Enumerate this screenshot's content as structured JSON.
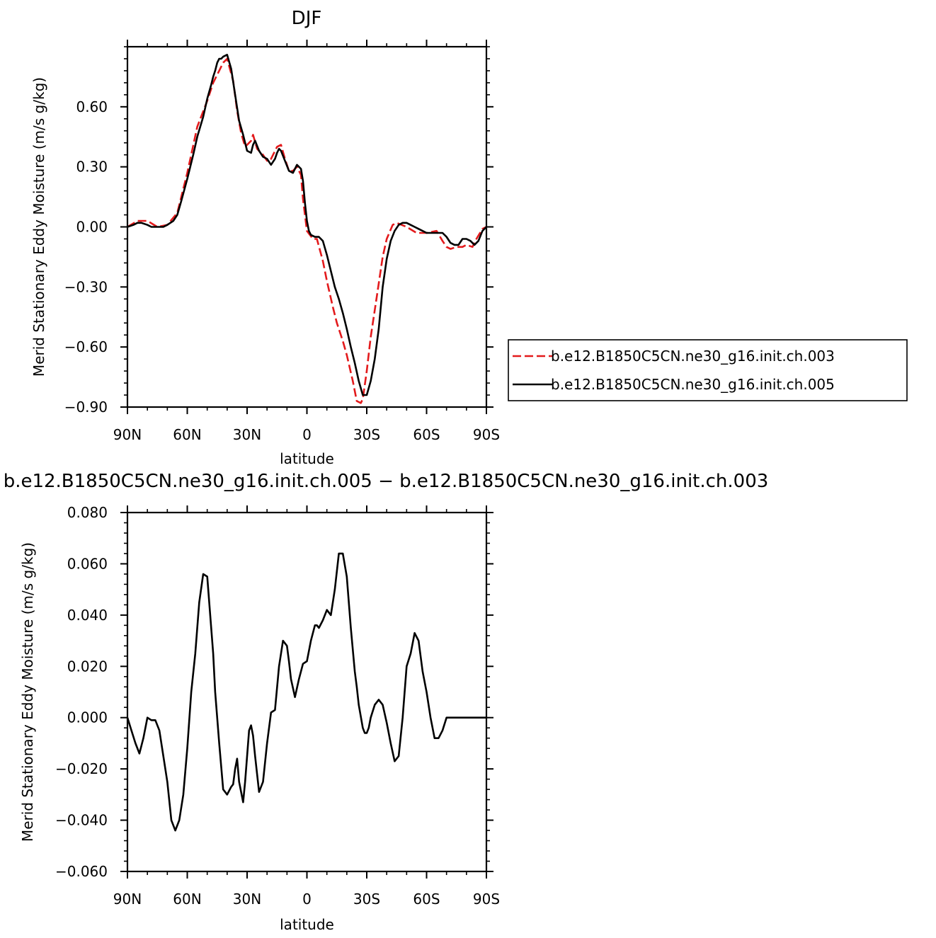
{
  "chart_data": [
    {
      "type": "line",
      "title": "DJF",
      "xlabel": "latitude",
      "ylabel": "Merid Stationary Eddy Moisture (m/s g/kg)",
      "xlim": [
        90,
        -90
      ],
      "ylim": [
        -0.9,
        0.9
      ],
      "x_ticks": [
        90,
        60,
        30,
        0,
        -30,
        -60,
        -90
      ],
      "x_tick_labels": [
        "90N",
        "60N",
        "30N",
        "0",
        "30S",
        "60S",
        "90S"
      ],
      "y_ticks": [
        -0.9,
        -0.6,
        -0.3,
        0.0,
        0.3,
        0.6
      ],
      "y_tick_labels": [
        "−0.90",
        "−0.60",
        "−0.30",
        "0.00",
        "0.30",
        "0.60"
      ],
      "legend_position": "right",
      "series": [
        {
          "name": "b.e12.B1850C5CN.ne30_g16.init.ch.003",
          "color": "#e31a1c",
          "dash": "dashed",
          "x": [
            90,
            85,
            80,
            75,
            70,
            65,
            60,
            55,
            50,
            47,
            44,
            42,
            40,
            37,
            35,
            33,
            31,
            28,
            27,
            25,
            22,
            20,
            18,
            15,
            13,
            11,
            9,
            7,
            5,
            3,
            2,
            0,
            -3,
            -5,
            -8,
            -10,
            -13,
            -15,
            -18,
            -20,
            -23,
            -25,
            -27,
            -28,
            -30,
            -32,
            -35,
            -38,
            -40,
            -43,
            -45,
            -50,
            -55,
            -60,
            -65,
            -68,
            -70,
            -72,
            -75,
            -78,
            -80,
            -83,
            -85,
            -88,
            -90
          ],
          "y": [
            0.0,
            0.03,
            0.03,
            0.0,
            0.01,
            0.07,
            0.27,
            0.5,
            0.63,
            0.72,
            0.78,
            0.82,
            0.84,
            0.73,
            0.58,
            0.47,
            0.4,
            0.43,
            0.46,
            0.39,
            0.36,
            0.33,
            0.34,
            0.4,
            0.41,
            0.34,
            0.28,
            0.28,
            0.3,
            0.26,
            0.14,
            -0.02,
            -0.06,
            -0.06,
            -0.17,
            -0.27,
            -0.4,
            -0.48,
            -0.57,
            -0.64,
            -0.77,
            -0.87,
            -0.88,
            -0.86,
            -0.72,
            -0.55,
            -0.35,
            -0.15,
            -0.06,
            0.01,
            0.02,
            0.0,
            -0.03,
            -0.03,
            -0.02,
            -0.07,
            -0.1,
            -0.11,
            -0.1,
            -0.1,
            -0.09,
            -0.1,
            -0.06,
            -0.01,
            0.0
          ]
        },
        {
          "name": "b.e12.B1850C5CN.ne30_g16.init.ch.005",
          "color": "#000000",
          "dash": "solid",
          "x": [
            90,
            87,
            85,
            83,
            80,
            78,
            75,
            72,
            70,
            67,
            65,
            63,
            60,
            57,
            55,
            52,
            50,
            48,
            47,
            46,
            45,
            44,
            43,
            42,
            40,
            38,
            36,
            34,
            32,
            30,
            28,
            27,
            26,
            24,
            22,
            20,
            18,
            16,
            15,
            14,
            13,
            11,
            9,
            7,
            6,
            5,
            3,
            2,
            1,
            0,
            -1,
            -2,
            -4,
            -6,
            -8,
            -10,
            -12,
            -14,
            -16,
            -18,
            -20,
            -22,
            -24,
            -26,
            -28,
            -30,
            -32,
            -34,
            -36,
            -38,
            -40,
            -42,
            -44,
            -46,
            -48,
            -50,
            -52,
            -54,
            -56,
            -58,
            -60,
            -62,
            -64,
            -66,
            -68,
            -70,
            -72,
            -74,
            -76,
            -78,
            -80,
            -82,
            -84,
            -86,
            -88,
            -90
          ],
          "y": [
            0.0,
            0.01,
            0.02,
            0.02,
            0.01,
            0.0,
            0.0,
            0.0,
            0.01,
            0.03,
            0.06,
            0.13,
            0.24,
            0.36,
            0.45,
            0.55,
            0.64,
            0.71,
            0.75,
            0.78,
            0.82,
            0.84,
            0.84,
            0.85,
            0.86,
            0.79,
            0.66,
            0.53,
            0.46,
            0.38,
            0.37,
            0.41,
            0.43,
            0.38,
            0.35,
            0.34,
            0.31,
            0.34,
            0.37,
            0.39,
            0.38,
            0.33,
            0.28,
            0.27,
            0.29,
            0.31,
            0.29,
            0.23,
            0.12,
            0.03,
            -0.02,
            -0.04,
            -0.05,
            -0.05,
            -0.07,
            -0.14,
            -0.22,
            -0.3,
            -0.36,
            -0.43,
            -0.51,
            -0.6,
            -0.68,
            -0.77,
            -0.84,
            -0.84,
            -0.77,
            -0.66,
            -0.51,
            -0.3,
            -0.16,
            -0.07,
            -0.02,
            0.01,
            0.02,
            0.02,
            0.01,
            0.0,
            -0.01,
            -0.02,
            -0.03,
            -0.03,
            -0.03,
            -0.03,
            -0.03,
            -0.05,
            -0.08,
            -0.09,
            -0.09,
            -0.06,
            -0.06,
            -0.07,
            -0.09,
            -0.07,
            -0.02,
            0.0
          ]
        }
      ]
    },
    {
      "type": "line",
      "title": "b.e12.B1850C5CN.ne30_g16.init.ch.005 − b.e12.B1850C5CN.ne30_g16.init.ch.003",
      "xlabel": "latitude",
      "ylabel": "Merid Stationary Eddy Moisture (m/s g/kg)",
      "xlim": [
        90,
        -90
      ],
      "ylim": [
        -0.06,
        0.08
      ],
      "x_ticks": [
        90,
        60,
        30,
        0,
        -30,
        -60,
        -90
      ],
      "x_tick_labels": [
        "90N",
        "60N",
        "30N",
        "0",
        "30S",
        "60S",
        "90S"
      ],
      "y_ticks": [
        -0.06,
        -0.04,
        -0.02,
        0.0,
        0.02,
        0.04,
        0.06,
        0.08
      ],
      "y_tick_labels": [
        "−0.060",
        "−0.040",
        "−0.020",
        "0.000",
        "0.020",
        "0.040",
        "0.060",
        "0.080"
      ],
      "series": [
        {
          "color": "#000000",
          "dash": "solid",
          "x": [
            90,
            88,
            86,
            84,
            82,
            80,
            78,
            76,
            74,
            72,
            70,
            68,
            66,
            64,
            62,
            60,
            58,
            56,
            54,
            52,
            50,
            48,
            47,
            46,
            44,
            42,
            40,
            38,
            37,
            36,
            35,
            34,
            32,
            31,
            30,
            29,
            28,
            27,
            26,
            25,
            24,
            22,
            20,
            18,
            16,
            14,
            12,
            10,
            9,
            8,
            6,
            4,
            2,
            0,
            -2,
            -4,
            -5,
            -6,
            -8,
            -10,
            -12,
            -14,
            -16,
            -18,
            -20,
            -22,
            -24,
            -25,
            -26,
            -28,
            -29,
            -30,
            -31,
            -32,
            -34,
            -36,
            -38,
            -40,
            -42,
            -44,
            -46,
            -48,
            -50,
            -52,
            -54,
            -56,
            -58,
            -60,
            -62,
            -64,
            -66,
            -68,
            -70,
            -72,
            -74,
            -75,
            -76,
            -78,
            -80,
            -82,
            -84,
            -86,
            -88,
            -90
          ],
          "y": [
            0.0,
            -0.005,
            -0.01,
            -0.014,
            -0.008,
            0.0,
            -0.001,
            -0.001,
            -0.005,
            -0.015,
            -0.025,
            -0.04,
            -0.044,
            -0.04,
            -0.03,
            -0.012,
            0.01,
            0.025,
            0.045,
            0.056,
            0.055,
            0.035,
            0.025,
            0.01,
            -0.01,
            -0.028,
            -0.03,
            -0.027,
            -0.026,
            -0.02,
            -0.016,
            -0.025,
            -0.033,
            -0.025,
            -0.015,
            -0.005,
            -0.003,
            -0.007,
            -0.015,
            -0.022,
            -0.029,
            -0.025,
            -0.01,
            0.002,
            0.003,
            0.02,
            0.03,
            0.028,
            0.022,
            0.015,
            0.008,
            0.015,
            0.021,
            0.022,
            0.03,
            0.036,
            0.036,
            0.035,
            0.038,
            0.042,
            0.04,
            0.05,
            0.064,
            0.064,
            0.055,
            0.035,
            0.018,
            0.012,
            0.005,
            -0.004,
            -0.006,
            -0.006,
            -0.004,
            0.0,
            0.005,
            0.007,
            0.005,
            -0.002,
            -0.01,
            -0.017,
            -0.015,
            0.0,
            0.02,
            0.025,
            0.033,
            0.03,
            0.018,
            0.01,
            0.0,
            -0.008,
            -0.008,
            -0.005,
            0.0,
            0.0,
            0.0,
            0.0,
            0.0,
            0.0,
            0.0,
            0.0,
            0.0,
            0.0,
            0.0,
            0.0
          ]
        }
      ]
    }
  ]
}
